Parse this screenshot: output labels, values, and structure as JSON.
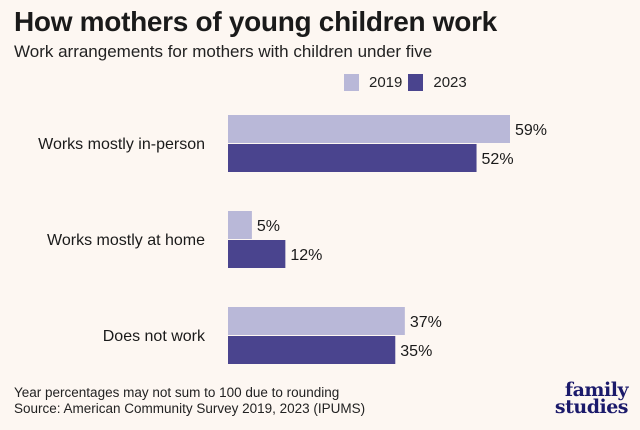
{
  "header": {
    "title": "How mothers of young children work",
    "subtitle": "Work arrangements for mothers with children under five"
  },
  "legend": [
    {
      "label": "2019",
      "color": "#b9b8d8"
    },
    {
      "label": "2023",
      "color": "#4a448e"
    }
  ],
  "footer": {
    "note": "Year percentages may not sum to 100 due to rounding",
    "source": "Source: American Community Survey 2019, 2023 (IPUMS)",
    "brand_line1": "family",
    "brand_line2": "studies"
  },
  "chart_data": {
    "type": "bar",
    "orientation": "horizontal",
    "title": "How mothers of young children work",
    "subtitle": "Work arrangements for mothers with children under five",
    "categories": [
      "Works mostly in-person",
      "Works mostly at home",
      "Does not work"
    ],
    "series": [
      {
        "name": "2019",
        "color": "#b9b8d8",
        "values": [
          59,
          5,
          37
        ],
        "labels": [
          "59%",
          "5%",
          "37%"
        ]
      },
      {
        "name": "2023",
        "color": "#4a448e",
        "values": [
          52,
          12,
          35
        ],
        "labels": [
          "52%",
          "12%",
          "35%"
        ]
      }
    ],
    "xlabel": "",
    "ylabel": "",
    "xlim": [
      0,
      60
    ],
    "grid": false,
    "legend_position": "top-right"
  }
}
